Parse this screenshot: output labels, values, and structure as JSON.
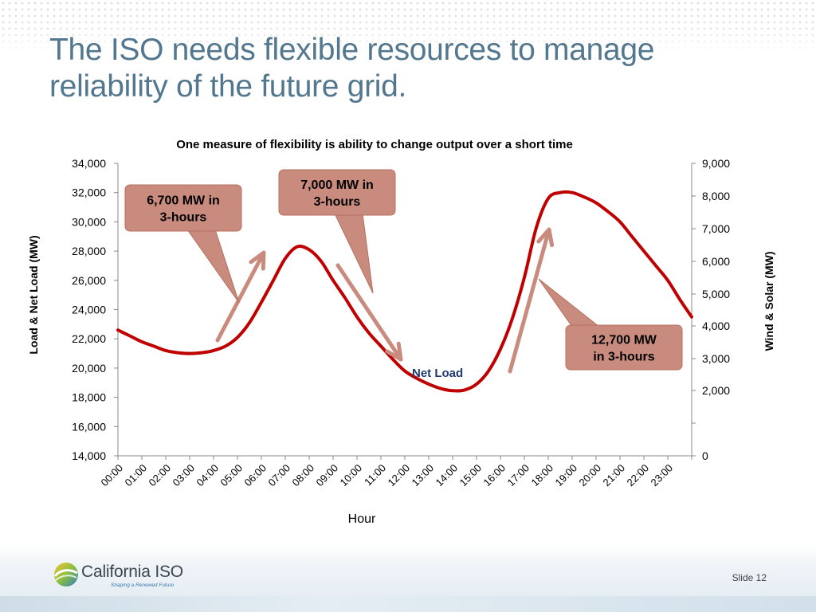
{
  "slide": {
    "title": "The ISO needs flexible resources to manage reliability of the future grid.",
    "slide_number": "Slide 12"
  },
  "logo": {
    "name": "California ISO",
    "tagline": "Shaping a Renewed Future"
  },
  "colors": {
    "title": "#52778f",
    "line": "#c00000",
    "arrow": "#c98b7d",
    "callout_fill": "#c98b7d",
    "callout_border": "#b66f5f",
    "net_load_label": "#1f3a6e"
  },
  "chart_data": {
    "type": "line",
    "title": "One measure of flexibility is ability to change output over a short time",
    "xlabel": "Hour",
    "ylabel": "Load & Net Load (MW)",
    "y2label": "Wind & Solar (MW)",
    "ylim": [
      14000,
      34000
    ],
    "yticks": [
      "14,000",
      "16,000",
      "18,000",
      "20,000",
      "22,000",
      "24,000",
      "26,000",
      "28,000",
      "30,000",
      "32,000",
      "34,000"
    ],
    "y2ticks": [
      "0",
      "2,000",
      "3,000",
      "4,000",
      "5,000",
      "6,000",
      "7,000",
      "8,000",
      "9,000"
    ],
    "y2tick_values": [
      0,
      2000,
      3000,
      4000,
      5000,
      6000,
      7000,
      8000,
      9000
    ],
    "y2lim": [
      0,
      9000
    ],
    "y2_minor_tick": 1000,
    "categories": [
      "00:00",
      "01:00",
      "02:00",
      "03:00",
      "04:00",
      "05:00",
      "06:00",
      "07:00",
      "08:00",
      "09:00",
      "10:00",
      "11:00",
      "12:00",
      "13:00",
      "14:00",
      "15:00",
      "16:00",
      "17:00",
      "18:00",
      "19:00",
      "20:00",
      "21:00",
      "22:00",
      "23:00"
    ],
    "grid": false,
    "series": [
      {
        "name": "Net Load",
        "x": [
          0,
          0.5,
          1,
          1.5,
          2,
          2.5,
          3,
          3.5,
          4,
          4.5,
          5,
          5.5,
          6,
          6.5,
          7,
          7.5,
          8,
          8.5,
          9,
          9.5,
          10,
          10.5,
          11,
          11.5,
          12,
          12.5,
          13,
          13.5,
          14,
          14.5,
          15,
          15.5,
          16,
          16.5,
          17,
          17.5,
          18,
          18.5,
          19,
          19.5,
          20,
          20.5,
          21,
          21.5,
          22,
          22.5,
          23,
          23.5,
          24
        ],
        "values": [
          22600,
          22200,
          21800,
          21500,
          21200,
          21050,
          21000,
          21050,
          21200,
          21500,
          22100,
          23100,
          24500,
          26000,
          27500,
          28300,
          28100,
          27300,
          26000,
          24800,
          23500,
          22400,
          21500,
          20600,
          19800,
          19300,
          18900,
          18600,
          18450,
          18500,
          18900,
          19800,
          21300,
          23400,
          26200,
          29600,
          31600,
          32000,
          32000,
          31700,
          31300,
          30700,
          30000,
          29000,
          28000,
          27000,
          26000,
          24700,
          23500
        ]
      }
    ],
    "annotations": [
      {
        "id": "morning",
        "text_lines": [
          "6,700 MW in",
          "3-hours"
        ]
      },
      {
        "id": "midday",
        "text_lines": [
          "7,000 MW in",
          "3-hours"
        ]
      },
      {
        "id": "evening",
        "text_lines": [
          "12,700 MW",
          "in 3-hours"
        ]
      }
    ],
    "series_label": "Net Load"
  }
}
